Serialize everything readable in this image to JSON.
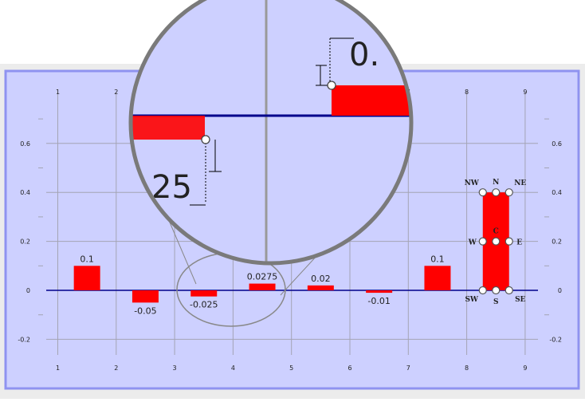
{
  "chart_data": {
    "type": "bar",
    "title": "",
    "xlabel": "",
    "ylabel": "",
    "x_ticks": [
      1,
      2,
      3,
      4,
      5,
      6,
      7,
      8,
      9
    ],
    "y_ticks": [
      "0.6",
      "0.4",
      "0.2",
      "0",
      "-0.2"
    ],
    "xlim": [
      0.7,
      9.7
    ],
    "ylim": [
      -0.25,
      0.75
    ],
    "grid": true,
    "bars": [
      {
        "x": 1.5,
        "value": 0.1,
        "label": "0.1"
      },
      {
        "x": 2.5,
        "value": -0.05,
        "label": "-0.05"
      },
      {
        "x": 3.5,
        "value": -0.025,
        "label": "-0.025"
      },
      {
        "x": 4.5,
        "value": 0.0275,
        "label": "0.0275"
      },
      {
        "x": 5.5,
        "value": 0.02,
        "label": "0.02"
      },
      {
        "x": 6.5,
        "value": -0.01,
        "label": "-0.01"
      },
      {
        "x": 7.5,
        "value": 0.1,
        "label": "0.1"
      },
      {
        "x": 8.5,
        "value": 0.4,
        "label": "",
        "selected": true
      }
    ],
    "bar_width": 0.45,
    "selection_handles": [
      "NW",
      "N",
      "NE",
      "W",
      "C",
      "E",
      "SW",
      "S",
      "SE"
    ],
    "magnifier": {
      "zoom_labels": [
        "0.",
        "25"
      ]
    }
  },
  "colors": {
    "background": "#cdd0ff",
    "frame": "#8f93f0",
    "grid": "#a4a4b4",
    "bar": "#ff0000",
    "axis_line": "#00008b",
    "text": "#222222"
  }
}
